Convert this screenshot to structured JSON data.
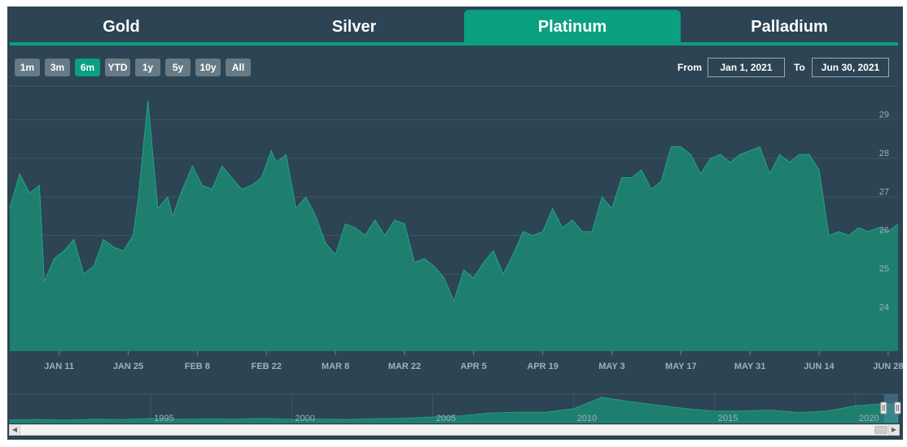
{
  "tabs": [
    {
      "label": "Gold",
      "active": false
    },
    {
      "label": "Silver",
      "active": false
    },
    {
      "label": "Platinum",
      "active": true
    },
    {
      "label": "Palladium",
      "active": false
    }
  ],
  "range_buttons": [
    {
      "label": "1m",
      "active": false
    },
    {
      "label": "3m",
      "active": false
    },
    {
      "label": "6m",
      "active": true
    },
    {
      "label": "YTD",
      "active": false
    },
    {
      "label": "1y",
      "active": false
    },
    {
      "label": "5y",
      "active": false
    },
    {
      "label": "10y",
      "active": false
    },
    {
      "label": "All",
      "active": false
    }
  ],
  "date_range": {
    "from_label": "From",
    "from_value": "Jan 1, 2021",
    "to_label": "To",
    "to_value": "Jun 30, 2021"
  },
  "colors": {
    "background": "#2c4454",
    "accent": "#0aa080",
    "series_fill": "#1e7f6f",
    "series_line": "#24a389",
    "button": "#667b86",
    "text": "#ffffff",
    "axis_text": "#9fb0b9"
  },
  "chart_data": {
    "type": "area",
    "x_tick_labels": [
      "JAN 11",
      "JAN 25",
      "FEB 8",
      "FEB 22",
      "MAR 8",
      "MAR 22",
      "APR 5",
      "APR 19",
      "MAY 3",
      "MAY 17",
      "MAY 31",
      "JUN 14",
      "JUN 28"
    ],
    "x_tick_dates": [
      "2021-01-11",
      "2021-01-25",
      "2021-02-08",
      "2021-02-22",
      "2021-03-08",
      "2021-03-22",
      "2021-04-05",
      "2021-04-19",
      "2021-05-03",
      "2021-05-17",
      "2021-05-31",
      "2021-06-14",
      "2021-06-28"
    ],
    "y_ticks": [
      24,
      25,
      26,
      27,
      28,
      29
    ],
    "xlim": [
      "2021-01-01",
      "2021-06-30"
    ],
    "ylim": [
      23,
      30
    ],
    "grid": true,
    "series": [
      {
        "x": [
          "2021-01-01",
          "2021-01-03",
          "2021-01-05",
          "2021-01-07",
          "2021-01-08",
          "2021-01-10",
          "2021-01-12",
          "2021-01-14",
          "2021-01-16",
          "2021-01-18",
          "2021-01-20",
          "2021-01-22",
          "2021-01-24",
          "2021-01-26",
          "2021-01-27",
          "2021-01-29",
          "2021-01-31",
          "2021-02-02",
          "2021-02-03",
          "2021-02-05",
          "2021-02-07",
          "2021-02-09",
          "2021-02-11",
          "2021-02-13",
          "2021-02-15",
          "2021-02-17",
          "2021-02-19",
          "2021-02-21",
          "2021-02-23",
          "2021-02-24",
          "2021-02-26",
          "2021-02-28",
          "2021-03-02",
          "2021-03-04",
          "2021-03-06",
          "2021-03-08",
          "2021-03-10",
          "2021-03-12",
          "2021-03-14",
          "2021-03-16",
          "2021-03-18",
          "2021-03-20",
          "2021-03-22",
          "2021-03-24",
          "2021-03-26",
          "2021-03-28",
          "2021-03-30",
          "2021-04-01",
          "2021-04-03",
          "2021-04-05",
          "2021-04-07",
          "2021-04-09",
          "2021-04-11",
          "2021-04-13",
          "2021-04-15",
          "2021-04-17",
          "2021-04-19",
          "2021-04-21",
          "2021-04-23",
          "2021-04-25",
          "2021-04-27",
          "2021-04-29",
          "2021-05-01",
          "2021-05-03",
          "2021-05-05",
          "2021-05-07",
          "2021-05-09",
          "2021-05-11",
          "2021-05-13",
          "2021-05-15",
          "2021-05-17",
          "2021-05-19",
          "2021-05-21",
          "2021-05-23",
          "2021-05-25",
          "2021-05-27",
          "2021-05-29",
          "2021-05-31",
          "2021-06-02",
          "2021-06-04",
          "2021-06-06",
          "2021-06-08",
          "2021-06-10",
          "2021-06-12",
          "2021-06-14",
          "2021-06-16",
          "2021-06-18",
          "2021-06-20",
          "2021-06-22",
          "2021-06-24",
          "2021-06-26",
          "2021-06-28",
          "2021-06-30"
        ],
        "y": [
          26.7,
          27.6,
          27.1,
          27.3,
          24.8,
          25.4,
          25.6,
          25.9,
          25.0,
          25.2,
          25.9,
          25.7,
          25.6,
          26.0,
          26.9,
          29.5,
          26.7,
          27.0,
          26.5,
          27.2,
          27.8,
          27.3,
          27.2,
          27.8,
          27.5,
          27.2,
          27.3,
          27.5,
          28.2,
          27.9,
          28.1,
          26.7,
          27.0,
          26.5,
          25.8,
          25.5,
          26.3,
          26.2,
          26.0,
          26.4,
          26.0,
          26.4,
          26.3,
          25.3,
          25.4,
          25.2,
          24.9,
          24.3,
          25.1,
          24.9,
          25.3,
          25.6,
          25.0,
          25.5,
          26.1,
          26.0,
          26.1,
          26.7,
          26.2,
          26.4,
          26.1,
          26.1,
          27.0,
          26.7,
          27.5,
          27.5,
          27.7,
          27.2,
          27.4,
          28.3,
          28.3,
          28.1,
          27.6,
          28.0,
          28.1,
          27.9,
          28.1,
          28.2,
          28.3,
          27.6,
          28.1,
          27.9,
          28.1,
          28.1,
          27.7,
          26.0,
          26.1,
          26.0,
          26.2,
          26.1,
          26.2,
          26.1,
          26.3
        ]
      }
    ]
  },
  "navigator": {
    "year_labels": [
      "1995",
      "2000",
      "2005",
      "2010",
      "2015",
      "2020"
    ],
    "x_range": [
      1990,
      2021.5
    ],
    "handles": [
      2021.0,
      2021.5
    ],
    "years": [
      1990,
      1991,
      1992,
      1993,
      1994,
      1995,
      1996,
      1997,
      1998,
      1999,
      2000,
      2001,
      2002,
      2003,
      2004,
      2005,
      2006,
      2007,
      2008,
      2009,
      2010,
      2011,
      2012,
      2013,
      2014,
      2015,
      2016,
      2017,
      2018,
      2019,
      2020,
      2021
    ],
    "values": [
      4.1,
      4.0,
      3.9,
      4.2,
      4.8,
      5.2,
      5.1,
      4.7,
      5.4,
      5.3,
      5.0,
      4.4,
      4.7,
      5.0,
      6.5,
      7.5,
      10.0,
      13.0,
      15.0,
      14.0,
      20.0,
      35.0,
      30.0,
      24.0,
      20.0,
      15.5,
      17.0,
      17.0,
      14.5,
      16.0,
      24.0,
      26.0
    ]
  }
}
